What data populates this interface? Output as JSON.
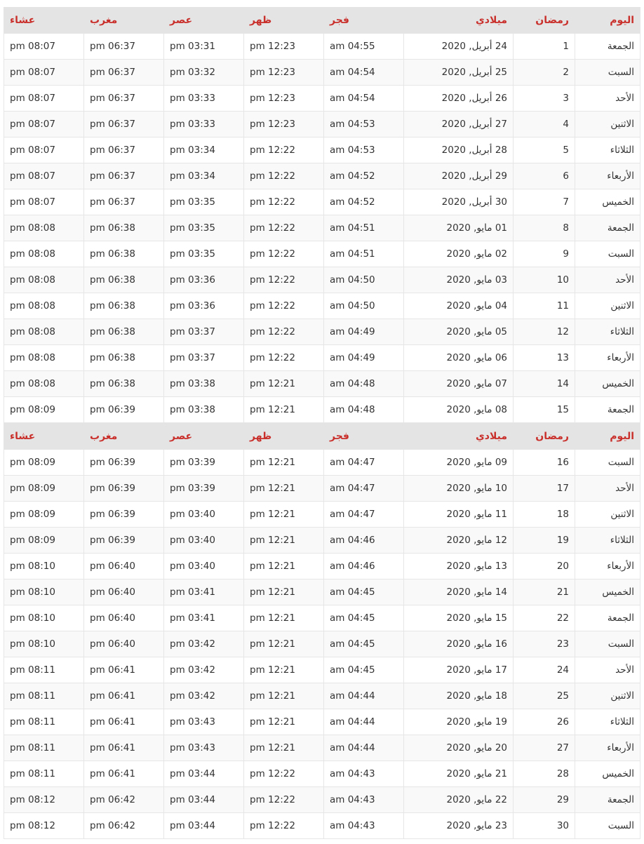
{
  "headers": {
    "day": "اليوم",
    "ramadan": "رمضان",
    "gregorian": "ميلادي",
    "fajr": "فجر",
    "dhuhr": "ظهر",
    "asr": "عصر",
    "maghrib": "مغرب",
    "isha": "عشاء"
  },
  "rows": [
    {
      "day": "الجمعة",
      "n": "1",
      "date": "24 أبريل, 2020",
      "fajr": "am 04:55",
      "dhuhr": "pm 12:23",
      "asr": "pm 03:31",
      "maghrib": "pm 06:37",
      "isha": "pm 08:07"
    },
    {
      "day": "السبت",
      "n": "2",
      "date": "25 أبريل, 2020",
      "fajr": "am 04:54",
      "dhuhr": "pm 12:23",
      "asr": "pm 03:32",
      "maghrib": "pm 06:37",
      "isha": "pm 08:07"
    },
    {
      "day": "الأحد",
      "n": "3",
      "date": "26 أبريل, 2020",
      "fajr": "am 04:54",
      "dhuhr": "pm 12:23",
      "asr": "pm 03:33",
      "maghrib": "pm 06:37",
      "isha": "pm 08:07"
    },
    {
      "day": "الاثنين",
      "n": "4",
      "date": "27 أبريل, 2020",
      "fajr": "am 04:53",
      "dhuhr": "pm 12:23",
      "asr": "pm 03:33",
      "maghrib": "pm 06:37",
      "isha": "pm 08:07"
    },
    {
      "day": "الثلاثاء",
      "n": "5",
      "date": "28 أبريل, 2020",
      "fajr": "am 04:53",
      "dhuhr": "pm 12:22",
      "asr": "pm 03:34",
      "maghrib": "pm 06:37",
      "isha": "pm 08:07"
    },
    {
      "day": "الأربعاء",
      "n": "6",
      "date": "29 أبريل, 2020",
      "fajr": "am 04:52",
      "dhuhr": "pm 12:22",
      "asr": "pm 03:34",
      "maghrib": "pm 06:37",
      "isha": "pm 08:07"
    },
    {
      "day": "الخميس",
      "n": "7",
      "date": "30 أبريل, 2020",
      "fajr": "am 04:52",
      "dhuhr": "pm 12:22",
      "asr": "pm 03:35",
      "maghrib": "pm 06:37",
      "isha": "pm 08:07"
    },
    {
      "day": "الجمعة",
      "n": "8",
      "date": "01 مايو, 2020",
      "fajr": "am 04:51",
      "dhuhr": "pm 12:22",
      "asr": "pm 03:35",
      "maghrib": "pm 06:38",
      "isha": "pm 08:08"
    },
    {
      "day": "السبت",
      "n": "9",
      "date": "02 مايو, 2020",
      "fajr": "am 04:51",
      "dhuhr": "pm 12:22",
      "asr": "pm 03:35",
      "maghrib": "pm 06:38",
      "isha": "pm 08:08"
    },
    {
      "day": "الأحد",
      "n": "10",
      "date": "03 مايو, 2020",
      "fajr": "am 04:50",
      "dhuhr": "pm 12:22",
      "asr": "pm 03:36",
      "maghrib": "pm 06:38",
      "isha": "pm 08:08"
    },
    {
      "day": "الاثنين",
      "n": "11",
      "date": "04 مايو, 2020",
      "fajr": "am 04:50",
      "dhuhr": "pm 12:22",
      "asr": "pm 03:36",
      "maghrib": "pm 06:38",
      "isha": "pm 08:08"
    },
    {
      "day": "الثلاثاء",
      "n": "12",
      "date": "05 مايو, 2020",
      "fajr": "am 04:49",
      "dhuhr": "pm 12:22",
      "asr": "pm 03:37",
      "maghrib": "pm 06:38",
      "isha": "pm 08:08"
    },
    {
      "day": "الأربعاء",
      "n": "13",
      "date": "06 مايو, 2020",
      "fajr": "am 04:49",
      "dhuhr": "pm 12:22",
      "asr": "pm 03:37",
      "maghrib": "pm 06:38",
      "isha": "pm 08:08"
    },
    {
      "day": "الخميس",
      "n": "14",
      "date": "07 مايو, 2020",
      "fajr": "am 04:48",
      "dhuhr": "pm 12:21",
      "asr": "pm 03:38",
      "maghrib": "pm 06:38",
      "isha": "pm 08:08"
    },
    {
      "day": "الجمعة",
      "n": "15",
      "date": "08 مايو, 2020",
      "fajr": "am 04:48",
      "dhuhr": "pm 12:21",
      "asr": "pm 03:38",
      "maghrib": "pm 06:39",
      "isha": "pm 08:09"
    },
    {
      "header": true
    },
    {
      "day": "السبت",
      "n": "16",
      "date": "09 مايو, 2020",
      "fajr": "am 04:47",
      "dhuhr": "pm 12:21",
      "asr": "pm 03:39",
      "maghrib": "pm 06:39",
      "isha": "pm 08:09"
    },
    {
      "day": "الأحد",
      "n": "17",
      "date": "10 مايو, 2020",
      "fajr": "am 04:47",
      "dhuhr": "pm 12:21",
      "asr": "pm 03:39",
      "maghrib": "pm 06:39",
      "isha": "pm 08:09"
    },
    {
      "day": "الاثنين",
      "n": "18",
      "date": "11 مايو, 2020",
      "fajr": "am 04:47",
      "dhuhr": "pm 12:21",
      "asr": "pm 03:40",
      "maghrib": "pm 06:39",
      "isha": "pm 08:09"
    },
    {
      "day": "الثلاثاء",
      "n": "19",
      "date": "12 مايو, 2020",
      "fajr": "am 04:46",
      "dhuhr": "pm 12:21",
      "asr": "pm 03:40",
      "maghrib": "pm 06:39",
      "isha": "pm 08:09"
    },
    {
      "day": "الأربعاء",
      "n": "20",
      "date": "13 مايو, 2020",
      "fajr": "am 04:46",
      "dhuhr": "pm 12:21",
      "asr": "pm 03:40",
      "maghrib": "pm 06:40",
      "isha": "pm 08:10"
    },
    {
      "day": "الخميس",
      "n": "21",
      "date": "14 مايو, 2020",
      "fajr": "am 04:45",
      "dhuhr": "pm 12:21",
      "asr": "pm 03:41",
      "maghrib": "pm 06:40",
      "isha": "pm 08:10"
    },
    {
      "day": "الجمعة",
      "n": "22",
      "date": "15 مايو, 2020",
      "fajr": "am 04:45",
      "dhuhr": "pm 12:21",
      "asr": "pm 03:41",
      "maghrib": "pm 06:40",
      "isha": "pm 08:10"
    },
    {
      "day": "السبت",
      "n": "23",
      "date": "16 مايو, 2020",
      "fajr": "am 04:45",
      "dhuhr": "pm 12:21",
      "asr": "pm 03:42",
      "maghrib": "pm 06:40",
      "isha": "pm 08:10"
    },
    {
      "day": "الأحد",
      "n": "24",
      "date": "17 مايو, 2020",
      "fajr": "am 04:45",
      "dhuhr": "pm 12:21",
      "asr": "pm 03:42",
      "maghrib": "pm 06:41",
      "isha": "pm 08:11"
    },
    {
      "day": "الاثنين",
      "n": "25",
      "date": "18 مايو, 2020",
      "fajr": "am 04:44",
      "dhuhr": "pm 12:21",
      "asr": "pm 03:42",
      "maghrib": "pm 06:41",
      "isha": "pm 08:11"
    },
    {
      "day": "الثلاثاء",
      "n": "26",
      "date": "19 مايو, 2020",
      "fajr": "am 04:44",
      "dhuhr": "pm 12:21",
      "asr": "pm 03:43",
      "maghrib": "pm 06:41",
      "isha": "pm 08:11"
    },
    {
      "day": "الأربعاء",
      "n": "27",
      "date": "20 مايو, 2020",
      "fajr": "am 04:44",
      "dhuhr": "pm 12:21",
      "asr": "pm 03:43",
      "maghrib": "pm 06:41",
      "isha": "pm 08:11"
    },
    {
      "day": "الخميس",
      "n": "28",
      "date": "21 مايو, 2020",
      "fajr": "am 04:43",
      "dhuhr": "pm 12:22",
      "asr": "pm 03:44",
      "maghrib": "pm 06:41",
      "isha": "pm 08:11"
    },
    {
      "day": "الجمعة",
      "n": "29",
      "date": "22 مايو, 2020",
      "fajr": "am 04:43",
      "dhuhr": "pm 12:22",
      "asr": "pm 03:44",
      "maghrib": "pm 06:42",
      "isha": "pm 08:12"
    },
    {
      "day": "السبت",
      "n": "30",
      "date": "23 مايو, 2020",
      "fajr": "am 04:43",
      "dhuhr": "pm 12:22",
      "asr": "pm 03:44",
      "maghrib": "pm 06:42",
      "isha": "pm 08:12"
    }
  ]
}
